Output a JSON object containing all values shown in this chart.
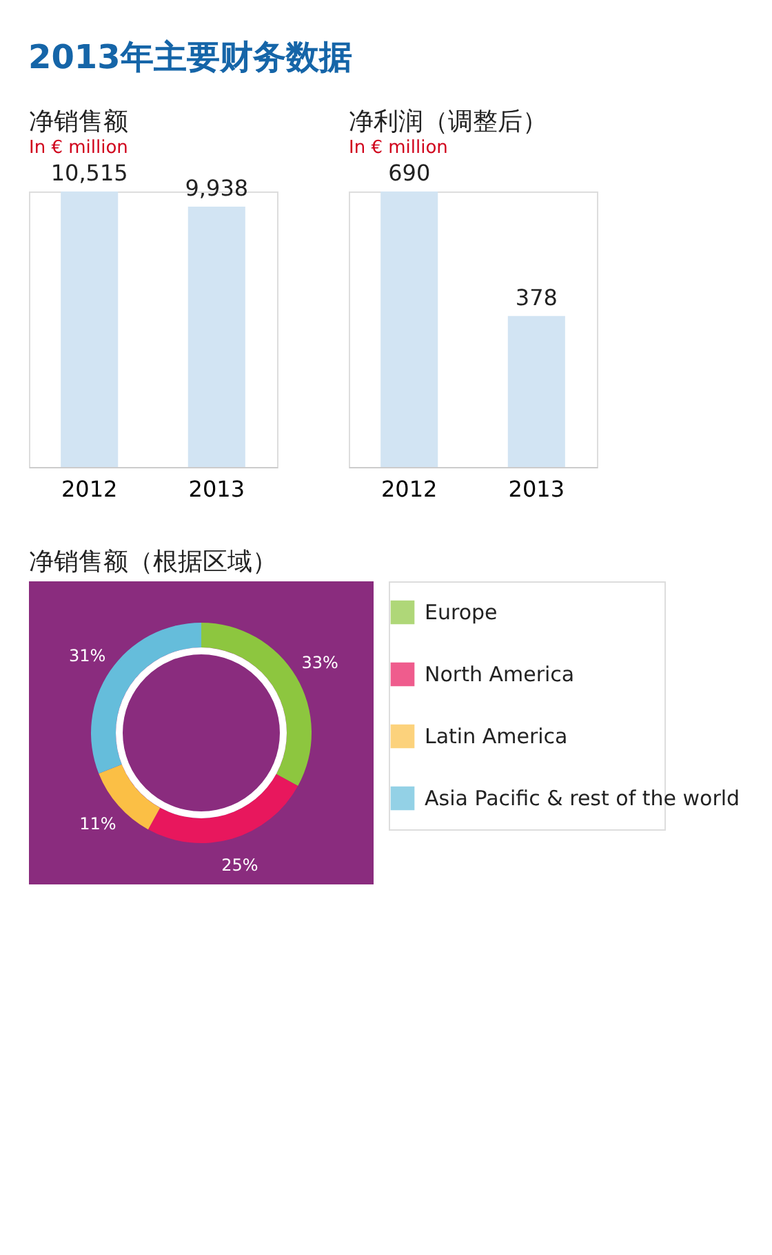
{
  "chart_data": [
    {
      "type": "bar",
      "title": "净销售额",
      "subtitle": "In € million",
      "annotations": [
        "2013年主要财务数据"
      ],
      "categories": [
        "2012",
        "2013"
      ],
      "values": [
        10515,
        9938
      ],
      "value_labels": [
        "10,515",
        "9,938"
      ],
      "color": "#d2e4f3",
      "tick_labels": "x",
      "grid": false
    },
    {
      "type": "bar",
      "title": "净利润（调整后）",
      "subtitle": "In € million",
      "categories": [
        "2012",
        "2013"
      ],
      "values": [
        690,
        378
      ],
      "value_labels": [
        "690",
        "378"
      ],
      "color": "#d2e4f3",
      "tick_labels": "x",
      "grid": false
    },
    {
      "type": "donut",
      "title": "净销售额（根据区域）",
      "categories": [
        "Europe",
        "North America",
        "Latin America",
        "Asia Pacific & rest of the world"
      ],
      "values": [
        33,
        25,
        11,
        31
      ],
      "value_labels": [
        "33%",
        "25%",
        "11%",
        "31%"
      ],
      "colors": [
        "#8dc63f",
        "#e8175d",
        "#fbbf45",
        "#65bddb"
      ],
      "legend": "right"
    }
  ]
}
